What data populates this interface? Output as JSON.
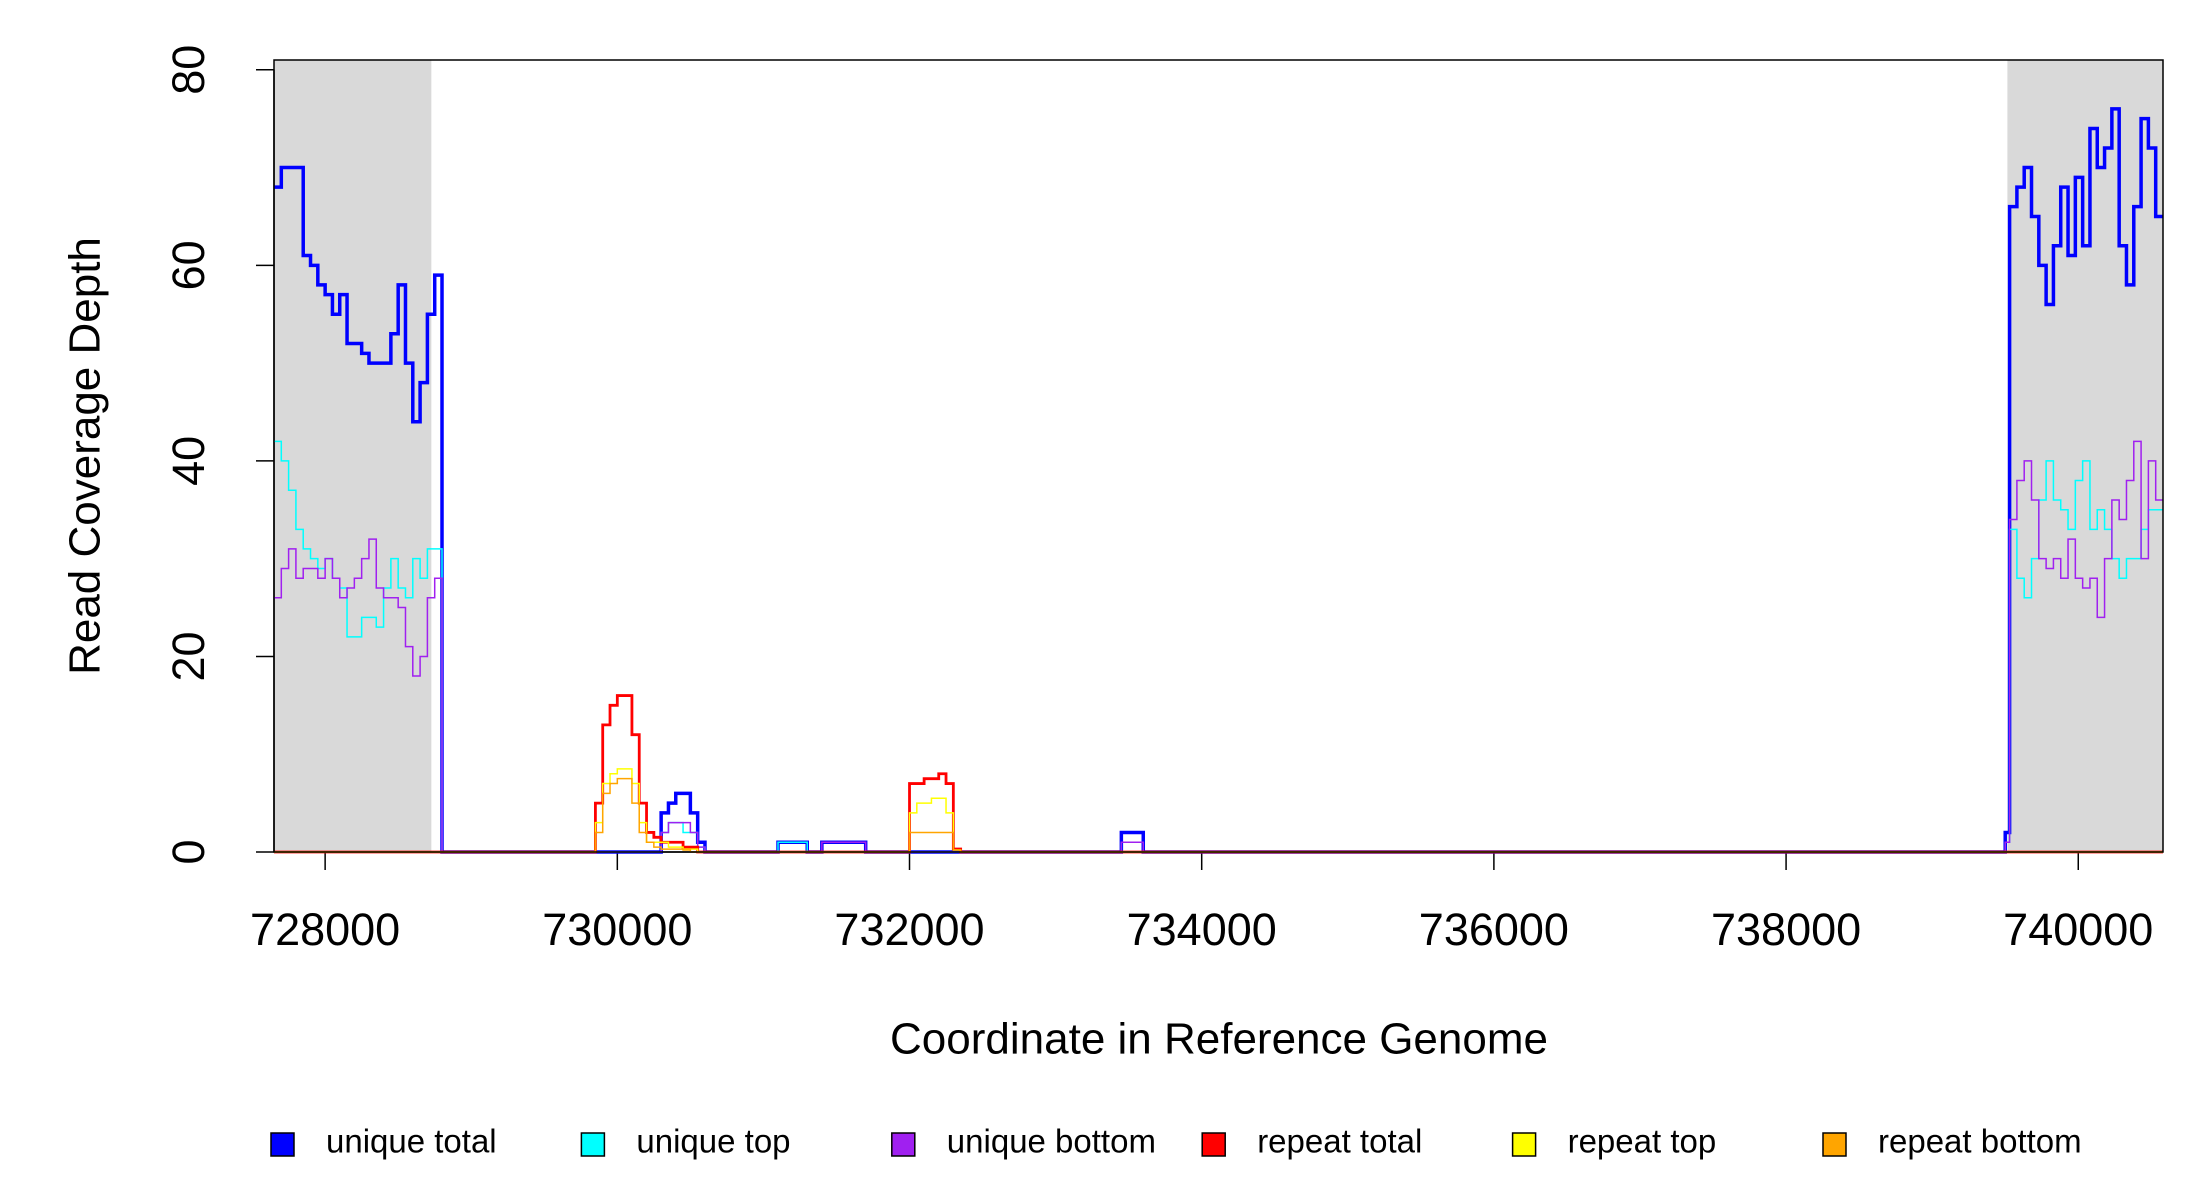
{
  "chart_data": {
    "type": "step",
    "x_label": "Coordinate in Reference Genome",
    "y_label": "Read Coverage Depth",
    "xlim": [
      727650,
      740580
    ],
    "ylim": [
      0,
      81
    ],
    "xticks": [
      728000,
      730000,
      732000,
      734000,
      736000,
      738000,
      740000
    ],
    "yticks": [
      0,
      20,
      40,
      60,
      80
    ],
    "shaded_regions": [
      [
        727650,
        728727
      ],
      [
        739515,
        740580
      ]
    ],
    "shade_color": "#d9d9d9",
    "legend": "bottom",
    "x": [
      727650,
      727700,
      727750,
      727800,
      727850,
      727900,
      727950,
      728000,
      728050,
      728100,
      728150,
      728200,
      728250,
      728300,
      728350,
      728400,
      728450,
      728500,
      728550,
      728600,
      728650,
      728700,
      728750,
      728800,
      729800,
      729850,
      729900,
      729950,
      730000,
      730050,
      730100,
      730150,
      730200,
      730250,
      730300,
      730350,
      730400,
      730450,
      730500,
      730550,
      730600,
      731100,
      731300,
      731400,
      731700,
      732000,
      732050,
      732100,
      732150,
      732200,
      732250,
      732300,
      732350,
      733450,
      733600,
      739450,
      739500,
      739530,
      739580,
      739630,
      739680,
      739730,
      739780,
      739830,
      739880,
      739930,
      739980,
      740030,
      740080,
      740130,
      740180,
      740230,
      740280,
      740330,
      740380,
      740430,
      740480,
      740530
    ],
    "series": [
      {
        "name": "unique total",
        "color": "#0000ff",
        "linewidth": 3.5,
        "values": [
          68,
          70,
          70,
          70,
          61,
          60,
          58,
          57,
          55,
          57,
          52,
          52,
          51,
          50,
          50,
          50,
          53,
          58,
          50,
          44,
          48,
          55,
          59,
          0,
          0,
          0,
          0,
          0,
          0,
          0,
          0,
          0,
          0,
          0,
          4,
          5,
          6,
          6,
          4,
          1,
          0,
          1,
          0,
          1,
          0,
          0,
          0,
          0,
          0,
          0,
          0,
          0,
          0,
          2,
          0,
          0,
          2,
          66,
          68,
          70,
          65,
          60,
          56,
          62,
          68,
          61,
          69,
          62,
          74,
          70,
          72,
          76,
          62,
          58,
          66,
          75,
          72,
          65
        ]
      },
      {
        "name": "unique top",
        "color": "#00ffff",
        "linewidth": 1.5,
        "values": [
          42,
          40,
          37,
          33,
          31,
          30,
          29,
          30,
          28,
          27,
          22,
          22,
          24,
          24,
          23,
          27,
          30,
          27,
          26,
          30,
          28,
          31,
          31,
          0,
          0,
          0,
          0,
          0,
          0,
          0,
          0,
          0,
          0,
          0,
          2,
          3,
          3,
          2,
          2,
          0.5,
          0,
          1,
          0,
          0,
          0,
          0,
          0,
          0,
          0,
          0,
          0,
          0,
          0,
          1,
          0,
          0,
          1,
          33,
          28,
          26,
          30,
          36,
          40,
          36,
          35,
          33,
          38,
          40,
          33,
          35,
          33,
          30,
          28,
          30,
          30,
          33,
          35,
          35
        ]
      },
      {
        "name": "unique bottom",
        "color": "#a020f0",
        "linewidth": 1.5,
        "values": [
          26,
          29,
          31,
          28,
          29,
          29,
          28,
          30,
          28,
          26,
          27,
          28,
          30,
          32,
          27,
          26,
          26,
          25,
          21,
          18,
          20,
          26,
          28,
          0,
          0,
          0,
          0,
          0,
          0,
          0,
          0,
          0,
          0,
          0,
          2,
          3,
          3,
          3,
          2,
          0.5,
          0,
          0,
          0,
          1,
          0,
          0,
          0,
          0,
          0,
          0,
          0,
          0,
          0,
          1,
          0,
          0,
          1,
          34,
          38,
          40,
          36,
          30,
          29,
          30,
          28,
          32,
          28,
          27,
          28,
          24,
          30,
          36,
          34,
          38,
          42,
          30,
          40,
          36
        ]
      },
      {
        "name": "repeat total",
        "color": "#ff0000",
        "linewidth": 2.8,
        "values": [
          0,
          0,
          0,
          0,
          0,
          0,
          0,
          0,
          0,
          0,
          0,
          0,
          0,
          0,
          0,
          0,
          0,
          0,
          0,
          0,
          0,
          0,
          0,
          0,
          0,
          5,
          13,
          15,
          16,
          16,
          12,
          5,
          2,
          1.5,
          1,
          1,
          1,
          0.5,
          0.5,
          0,
          0,
          0,
          0,
          0,
          0,
          7,
          7,
          7.5,
          7.5,
          8,
          7,
          0.3,
          0,
          0,
          0,
          0,
          0,
          0,
          0,
          0,
          0,
          0,
          0,
          0,
          0,
          0,
          0,
          0,
          0,
          0,
          0,
          0,
          0,
          0,
          0,
          0,
          0,
          0
        ]
      },
      {
        "name": "repeat top",
        "color": "#ffff00",
        "linewidth": 1.5,
        "values": [
          0,
          0,
          0,
          0,
          0,
          0,
          0,
          0,
          0,
          0,
          0,
          0,
          0,
          0,
          0,
          0,
          0,
          0,
          0,
          0,
          0,
          0,
          0,
          0,
          0,
          3,
          7,
          8,
          8.5,
          8.5,
          7,
          3,
          1,
          1,
          1,
          0.5,
          0.5,
          0.3,
          0.3,
          0,
          0,
          0,
          0,
          0,
          0,
          4,
          5,
          5,
          5.5,
          5.5,
          4,
          0.2,
          0,
          0,
          0,
          0,
          0,
          0,
          0,
          0,
          0,
          0,
          0,
          0,
          0,
          0,
          0,
          0,
          0,
          0,
          0,
          0,
          0,
          0,
          0,
          0,
          0,
          0
        ]
      },
      {
        "name": "repeat bottom",
        "color": "#ffa500",
        "linewidth": 1.5,
        "values": [
          0,
          0,
          0,
          0,
          0,
          0,
          0,
          0,
          0,
          0,
          0,
          0,
          0,
          0,
          0,
          0,
          0,
          0,
          0,
          0,
          0,
          0,
          0,
          0,
          0,
          2,
          6,
          7,
          7.5,
          7.5,
          5,
          2,
          1,
          0.5,
          0.3,
          0.3,
          0.3,
          0.2,
          0,
          0,
          0,
          0,
          0,
          0,
          0,
          2,
          2,
          2,
          2,
          2,
          2,
          0.2,
          0,
          0,
          0,
          0,
          0,
          0,
          0,
          0,
          0,
          0,
          0,
          0,
          0,
          0,
          0,
          0,
          0,
          0,
          0,
          0,
          0,
          0,
          0,
          0,
          0,
          0
        ]
      }
    ]
  }
}
